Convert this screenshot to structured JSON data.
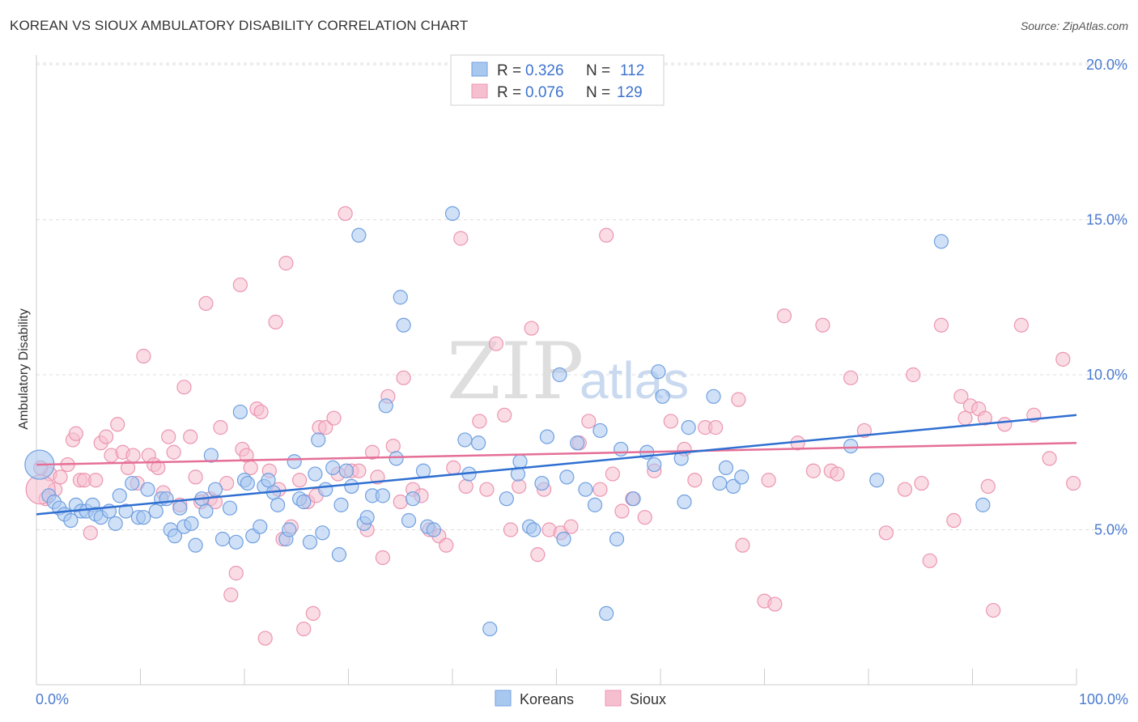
{
  "title": "KOREAN VS SIOUX AMBULATORY DISABILITY CORRELATION CHART",
  "source": "Source: ZipAtlas.com",
  "watermark": {
    "zip": "ZIP",
    "atlas": "atlas"
  },
  "legend": {
    "rows": [
      {
        "r_label": "R = ",
        "r_value": "0.326",
        "n_label": "N = ",
        "n_value": "112"
      },
      {
        "r_label": "R = ",
        "r_value": "0.076",
        "n_label": "N = ",
        "n_value": "129"
      }
    ]
  },
  "bottom_legend": [
    "Koreans",
    "Sioux"
  ],
  "colors": {
    "koreans_fill": "#a9c8f0",
    "koreans_stroke": "#6f9fe0",
    "koreans_line": "#2f6fd1",
    "sioux_fill": "#f6bfd0",
    "sioux_stroke": "#ec95b1",
    "sioux_line": "#e56f97",
    "tick_text": "#4a7bd0",
    "grid": "#dddddd"
  },
  "chart_data": {
    "type": "scatter",
    "title": "KOREAN VS SIOUX AMBULATORY DISABILITY CORRELATION CHART",
    "xlabel": "",
    "ylabel": "Ambulatory Disability",
    "xlim": [
      0,
      100
    ],
    "ylim": [
      0,
      20
    ],
    "x_tick_labels": [
      "0.0%",
      "100.0%"
    ],
    "y_ticks": [
      5,
      10,
      15,
      20
    ],
    "y_tick_labels": [
      "5.0%",
      "10.0%",
      "15.0%",
      "20.0%"
    ],
    "grid": "horizontal dashed",
    "legend_position": "top-center",
    "series": [
      {
        "name": "Koreans",
        "R": 0.326,
        "N": 112,
        "trend": {
          "x": [
            0,
            100
          ],
          "y": [
            5.5,
            8.7
          ]
        },
        "points": [
          [
            1.2,
            6.1
          ],
          [
            1.7,
            5.9
          ],
          [
            2.2,
            5.7
          ],
          [
            2.7,
            5.5
          ],
          [
            3.3,
            5.3
          ],
          [
            3.8,
            5.8
          ],
          [
            4.3,
            5.6
          ],
          [
            4.8,
            5.6
          ],
          [
            5.4,
            5.8
          ],
          [
            5.7,
            5.5
          ],
          [
            6.2,
            5.4
          ],
          [
            7.0,
            5.6
          ],
          [
            7.6,
            5.2
          ],
          [
            8.0,
            6.1
          ],
          [
            8.6,
            5.6
          ],
          [
            9.2,
            6.5
          ],
          [
            9.8,
            5.4
          ],
          [
            10.3,
            5.4
          ],
          [
            10.7,
            6.3
          ],
          [
            11.5,
            5.6
          ],
          [
            12.0,
            6.0
          ],
          [
            12.5,
            6.0
          ],
          [
            12.9,
            5.0
          ],
          [
            13.3,
            4.8
          ],
          [
            13.8,
            5.7
          ],
          [
            14.2,
            5.1
          ],
          [
            14.9,
            5.2
          ],
          [
            15.3,
            4.5
          ],
          [
            15.9,
            6.0
          ],
          [
            16.3,
            5.6
          ],
          [
            16.8,
            7.4
          ],
          [
            17.2,
            6.3
          ],
          [
            17.9,
            4.7
          ],
          [
            18.6,
            5.7
          ],
          [
            19.2,
            4.6
          ],
          [
            19.6,
            8.8
          ],
          [
            20.0,
            6.6
          ],
          [
            20.3,
            6.5
          ],
          [
            20.8,
            4.8
          ],
          [
            21.5,
            5.1
          ],
          [
            21.9,
            6.4
          ],
          [
            22.3,
            6.6
          ],
          [
            22.8,
            6.2
          ],
          [
            23.2,
            5.8
          ],
          [
            24.0,
            4.7
          ],
          [
            24.3,
            5.0
          ],
          [
            24.8,
            7.2
          ],
          [
            25.3,
            6.0
          ],
          [
            25.7,
            5.9
          ],
          [
            26.3,
            4.6
          ],
          [
            26.8,
            6.8
          ],
          [
            27.1,
            7.9
          ],
          [
            27.5,
            4.9
          ],
          [
            27.8,
            6.3
          ],
          [
            28.5,
            7.0
          ],
          [
            29.1,
            4.2
          ],
          [
            29.3,
            5.8
          ],
          [
            29.8,
            6.9
          ],
          [
            30.3,
            6.4
          ],
          [
            31.0,
            14.5
          ],
          [
            31.5,
            5.2
          ],
          [
            31.8,
            5.4
          ],
          [
            32.3,
            6.1
          ],
          [
            33.3,
            6.1
          ],
          [
            33.6,
            9.0
          ],
          [
            34.6,
            7.3
          ],
          [
            35.0,
            12.5
          ],
          [
            35.3,
            11.6
          ],
          [
            35.8,
            5.3
          ],
          [
            36.2,
            6.0
          ],
          [
            37.2,
            6.9
          ],
          [
            37.6,
            5.1
          ],
          [
            38.2,
            5.0
          ],
          [
            40.0,
            15.2
          ],
          [
            41.2,
            7.9
          ],
          [
            41.6,
            6.8
          ],
          [
            42.5,
            7.8
          ],
          [
            43.6,
            1.8
          ],
          [
            45.2,
            6.0
          ],
          [
            46.3,
            6.8
          ],
          [
            46.5,
            7.2
          ],
          [
            47.4,
            5.1
          ],
          [
            47.8,
            5.0
          ],
          [
            48.6,
            6.5
          ],
          [
            49.1,
            8.0
          ],
          [
            50.3,
            10.0
          ],
          [
            50.7,
            4.7
          ],
          [
            51.0,
            6.7
          ],
          [
            52.0,
            7.8
          ],
          [
            52.8,
            6.3
          ],
          [
            53.7,
            5.8
          ],
          [
            54.2,
            8.2
          ],
          [
            54.8,
            2.3
          ],
          [
            55.8,
            4.7
          ],
          [
            56.2,
            7.6
          ],
          [
            57.4,
            6.0
          ],
          [
            58.7,
            7.5
          ],
          [
            59.4,
            7.1
          ],
          [
            59.8,
            10.1
          ],
          [
            60.2,
            9.3
          ],
          [
            62.0,
            7.3
          ],
          [
            62.3,
            5.9
          ],
          [
            62.7,
            8.3
          ],
          [
            65.1,
            9.3
          ],
          [
            65.7,
            6.5
          ],
          [
            66.3,
            7.0
          ],
          [
            67.0,
            6.4
          ],
          [
            67.8,
            6.7
          ],
          [
            78.3,
            7.7
          ],
          [
            80.8,
            6.6
          ],
          [
            87.0,
            14.3
          ],
          [
            91.0,
            5.8
          ]
        ]
      },
      {
        "name": "Sioux",
        "R": 0.076,
        "N": 129,
        "trend": {
          "x": [
            0,
            100
          ],
          "y": [
            7.1,
            7.8
          ]
        },
        "points": [
          [
            0.9,
            6.0
          ],
          [
            1.3,
            6.8
          ],
          [
            1.8,
            6.3
          ],
          [
            2.3,
            6.7
          ],
          [
            3.0,
            7.1
          ],
          [
            3.5,
            7.9
          ],
          [
            3.8,
            8.1
          ],
          [
            4.2,
            6.6
          ],
          [
            4.6,
            6.6
          ],
          [
            5.2,
            4.9
          ],
          [
            5.7,
            6.6
          ],
          [
            6.2,
            7.8
          ],
          [
            6.7,
            8.0
          ],
          [
            7.2,
            7.4
          ],
          [
            7.8,
            8.4
          ],
          [
            8.3,
            7.5
          ],
          [
            8.8,
            7.0
          ],
          [
            9.3,
            7.4
          ],
          [
            9.7,
            6.5
          ],
          [
            10.3,
            10.6
          ],
          [
            10.8,
            7.4
          ],
          [
            11.3,
            7.1
          ],
          [
            11.7,
            7.0
          ],
          [
            12.2,
            6.2
          ],
          [
            12.7,
            8.0
          ],
          [
            13.2,
            7.5
          ],
          [
            13.8,
            5.8
          ],
          [
            14.2,
            9.6
          ],
          [
            14.8,
            8.0
          ],
          [
            15.3,
            6.7
          ],
          [
            15.8,
            5.9
          ],
          [
            16.3,
            12.3
          ],
          [
            16.7,
            6.0
          ],
          [
            17.2,
            5.9
          ],
          [
            17.7,
            8.3
          ],
          [
            18.3,
            6.5
          ],
          [
            18.7,
            2.9
          ],
          [
            19.2,
            3.6
          ],
          [
            19.6,
            12.9
          ],
          [
            19.8,
            7.6
          ],
          [
            20.2,
            7.4
          ],
          [
            20.6,
            7.0
          ],
          [
            21.2,
            8.9
          ],
          [
            21.6,
            8.8
          ],
          [
            22.0,
            1.5
          ],
          [
            22.4,
            6.9
          ],
          [
            23.0,
            11.7
          ],
          [
            23.3,
            6.3
          ],
          [
            23.7,
            4.7
          ],
          [
            24.0,
            13.6
          ],
          [
            24.5,
            5.1
          ],
          [
            25.3,
            6.6
          ],
          [
            25.7,
            1.8
          ],
          [
            26.1,
            5.9
          ],
          [
            26.6,
            2.3
          ],
          [
            26.9,
            6.1
          ],
          [
            27.2,
            8.3
          ],
          [
            27.8,
            8.3
          ],
          [
            28.6,
            8.6
          ],
          [
            29.0,
            6.8
          ],
          [
            29.7,
            15.2
          ],
          [
            30.3,
            6.9
          ],
          [
            31.0,
            6.9
          ],
          [
            31.8,
            5.0
          ],
          [
            32.3,
            7.5
          ],
          [
            32.8,
            6.7
          ],
          [
            33.3,
            4.1
          ],
          [
            33.8,
            9.3
          ],
          [
            34.3,
            7.7
          ],
          [
            35.0,
            5.9
          ],
          [
            35.3,
            9.9
          ],
          [
            36.2,
            6.3
          ],
          [
            37.0,
            6.1
          ],
          [
            37.8,
            5.0
          ],
          [
            38.7,
            4.8
          ],
          [
            39.4,
            4.5
          ],
          [
            40.1,
            7.0
          ],
          [
            40.8,
            14.4
          ],
          [
            41.3,
            6.4
          ],
          [
            42.6,
            8.5
          ],
          [
            43.3,
            6.3
          ],
          [
            44.2,
            11.0
          ],
          [
            45.0,
            8.7
          ],
          [
            45.6,
            5.0
          ],
          [
            46.4,
            6.4
          ],
          [
            47.6,
            11.5
          ],
          [
            48.2,
            4.2
          ],
          [
            48.8,
            6.3
          ],
          [
            49.3,
            5.0
          ],
          [
            50.4,
            4.9
          ],
          [
            51.4,
            5.1
          ],
          [
            52.2,
            7.8
          ],
          [
            53.1,
            8.5
          ],
          [
            54.2,
            6.3
          ],
          [
            54.8,
            14.5
          ],
          [
            55.4,
            6.8
          ],
          [
            56.3,
            5.6
          ],
          [
            57.3,
            6.0
          ],
          [
            58.5,
            5.4
          ],
          [
            59.4,
            6.9
          ],
          [
            61.0,
            8.5
          ],
          [
            62.3,
            7.6
          ],
          [
            63.3,
            6.6
          ],
          [
            64.3,
            8.3
          ],
          [
            65.3,
            8.3
          ],
          [
            67.5,
            9.2
          ],
          [
            67.9,
            4.5
          ],
          [
            70.0,
            2.7
          ],
          [
            70.4,
            6.6
          ],
          [
            71.0,
            2.6
          ],
          [
            71.9,
            11.9
          ],
          [
            73.2,
            7.8
          ],
          [
            74.7,
            6.9
          ],
          [
            75.6,
            11.6
          ],
          [
            76.4,
            6.9
          ],
          [
            77.0,
            6.8
          ],
          [
            78.3,
            9.9
          ],
          [
            79.6,
            8.2
          ],
          [
            81.7,
            4.9
          ],
          [
            83.5,
            6.3
          ],
          [
            84.3,
            10.0
          ],
          [
            85.1,
            6.5
          ],
          [
            85.9,
            4.0
          ],
          [
            87.0,
            11.6
          ],
          [
            88.2,
            5.3
          ],
          [
            88.9,
            9.3
          ],
          [
            89.3,
            8.6
          ],
          [
            89.8,
            9.0
          ],
          [
            90.6,
            8.9
          ],
          [
            91.2,
            8.6
          ],
          [
            91.5,
            6.4
          ],
          [
            92.0,
            2.4
          ],
          [
            93.1,
            8.4
          ],
          [
            94.7,
            11.6
          ],
          [
            95.9,
            8.7
          ],
          [
            97.4,
            7.3
          ],
          [
            98.7,
            10.5
          ],
          [
            99.7,
            6.5
          ],
          [
            0.4,
            7.0
          ]
        ]
      }
    ],
    "big_points": [
      {
        "series": "Koreans",
        "x": 0.3,
        "y": 7.1
      },
      {
        "series": "Sioux",
        "x": 0.4,
        "y": 6.3
      }
    ]
  }
}
